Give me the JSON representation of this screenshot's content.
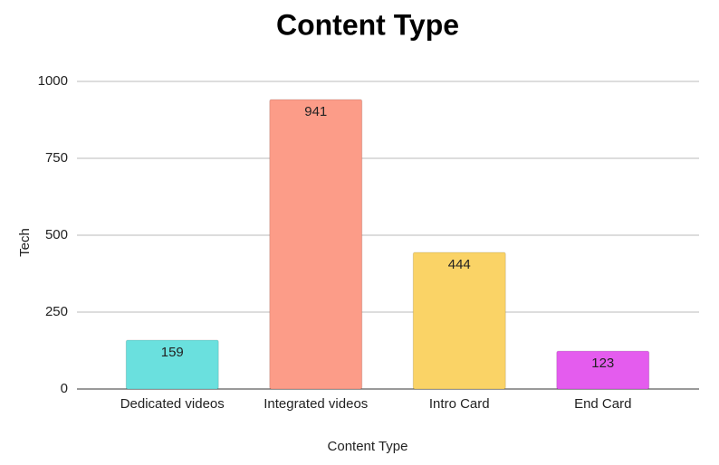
{
  "chart_data": {
    "type": "bar",
    "title": "Content Type",
    "x_label": "Content Type",
    "y_label": "Tech",
    "categories": [
      "Dedicated videos",
      "Integrated videos",
      "Intro Card",
      "End Card"
    ],
    "values": [
      159,
      941,
      444,
      123
    ],
    "colors": [
      "#6ae0de",
      "#fc9c88",
      "#fad366",
      "#e45cee"
    ],
    "ylim": [
      0,
      1000
    ],
    "yticks": [
      0,
      250,
      500,
      750,
      1000
    ],
    "grid": true
  }
}
